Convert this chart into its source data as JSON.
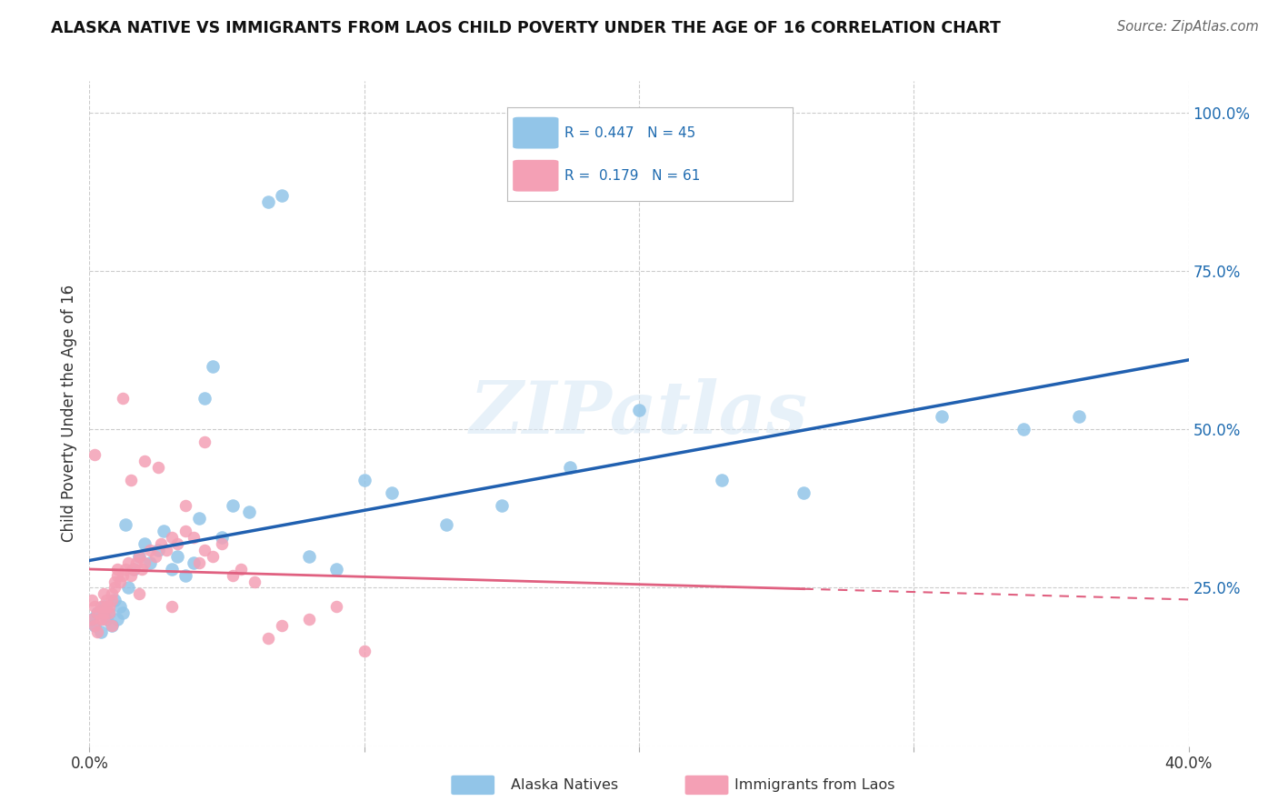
{
  "title": "ALASKA NATIVE VS IMMIGRANTS FROM LAOS CHILD POVERTY UNDER THE AGE OF 16 CORRELATION CHART",
  "source": "Source: ZipAtlas.com",
  "ylabel": "Child Poverty Under the Age of 16",
  "xlim": [
    0.0,
    0.4
  ],
  "ylim": [
    0.0,
    1.05
  ],
  "ytick_vals": [
    0.0,
    0.25,
    0.5,
    0.75,
    1.0
  ],
  "ytick_labels_right": [
    "",
    "25.0%",
    "50.0%",
    "75.0%",
    "100.0%"
  ],
  "xtick_vals": [
    0.0,
    0.1,
    0.2,
    0.3,
    0.4
  ],
  "xtick_labels": [
    "0.0%",
    "",
    "",
    "",
    "40.0%"
  ],
  "alaska_R": 0.447,
  "alaska_N": 45,
  "laos_R": 0.179,
  "laos_N": 61,
  "alaska_color": "#92C5E8",
  "laos_color": "#F4A0B5",
  "alaska_line_color": "#2060B0",
  "laos_line_color": "#E06080",
  "background_color": "#FFFFFF",
  "grid_color": "#CCCCCC",
  "alaska_x": [
    0.001,
    0.002,
    0.003,
    0.004,
    0.005,
    0.006,
    0.007,
    0.008,
    0.009,
    0.01,
    0.011,
    0.012,
    0.013,
    0.014,
    0.016,
    0.018,
    0.02,
    0.022,
    0.025,
    0.027,
    0.03,
    0.032,
    0.035,
    0.038,
    0.04,
    0.042,
    0.045,
    0.048,
    0.052,
    0.058,
    0.065,
    0.07,
    0.08,
    0.09,
    0.1,
    0.11,
    0.13,
    0.15,
    0.175,
    0.2,
    0.23,
    0.26,
    0.31,
    0.34,
    0.36
  ],
  "alaska_y": [
    0.2,
    0.19,
    0.21,
    0.18,
    0.22,
    0.2,
    0.21,
    0.19,
    0.23,
    0.2,
    0.22,
    0.21,
    0.35,
    0.25,
    0.28,
    0.3,
    0.32,
    0.29,
    0.31,
    0.34,
    0.28,
    0.3,
    0.27,
    0.29,
    0.36,
    0.55,
    0.6,
    0.33,
    0.38,
    0.37,
    0.86,
    0.87,
    0.3,
    0.28,
    0.42,
    0.4,
    0.35,
    0.38,
    0.44,
    0.53,
    0.42,
    0.4,
    0.52,
    0.5,
    0.52
  ],
  "laos_x": [
    0.001,
    0.001,
    0.002,
    0.002,
    0.003,
    0.003,
    0.004,
    0.004,
    0.005,
    0.005,
    0.006,
    0.006,
    0.007,
    0.007,
    0.008,
    0.008,
    0.009,
    0.009,
    0.01,
    0.01,
    0.011,
    0.012,
    0.013,
    0.014,
    0.015,
    0.016,
    0.017,
    0.018,
    0.019,
    0.02,
    0.022,
    0.024,
    0.026,
    0.028,
    0.03,
    0.032,
    0.035,
    0.038,
    0.04,
    0.042,
    0.045,
    0.048,
    0.052,
    0.055,
    0.06,
    0.065,
    0.07,
    0.08,
    0.09,
    0.1,
    0.012,
    0.02,
    0.042,
    0.002,
    0.015,
    0.025,
    0.035,
    0.005,
    0.008,
    0.018,
    0.03
  ],
  "laos_y": [
    0.23,
    0.2,
    0.22,
    0.19,
    0.21,
    0.18,
    0.22,
    0.2,
    0.24,
    0.21,
    0.22,
    0.23,
    0.21,
    0.22,
    0.23,
    0.24,
    0.25,
    0.26,
    0.27,
    0.28,
    0.26,
    0.27,
    0.28,
    0.29,
    0.27,
    0.28,
    0.29,
    0.3,
    0.28,
    0.29,
    0.31,
    0.3,
    0.32,
    0.31,
    0.33,
    0.32,
    0.34,
    0.33,
    0.29,
    0.31,
    0.3,
    0.32,
    0.27,
    0.28,
    0.26,
    0.17,
    0.19,
    0.2,
    0.22,
    0.15,
    0.55,
    0.45,
    0.48,
    0.46,
    0.42,
    0.44,
    0.38,
    0.2,
    0.19,
    0.24,
    0.22
  ]
}
